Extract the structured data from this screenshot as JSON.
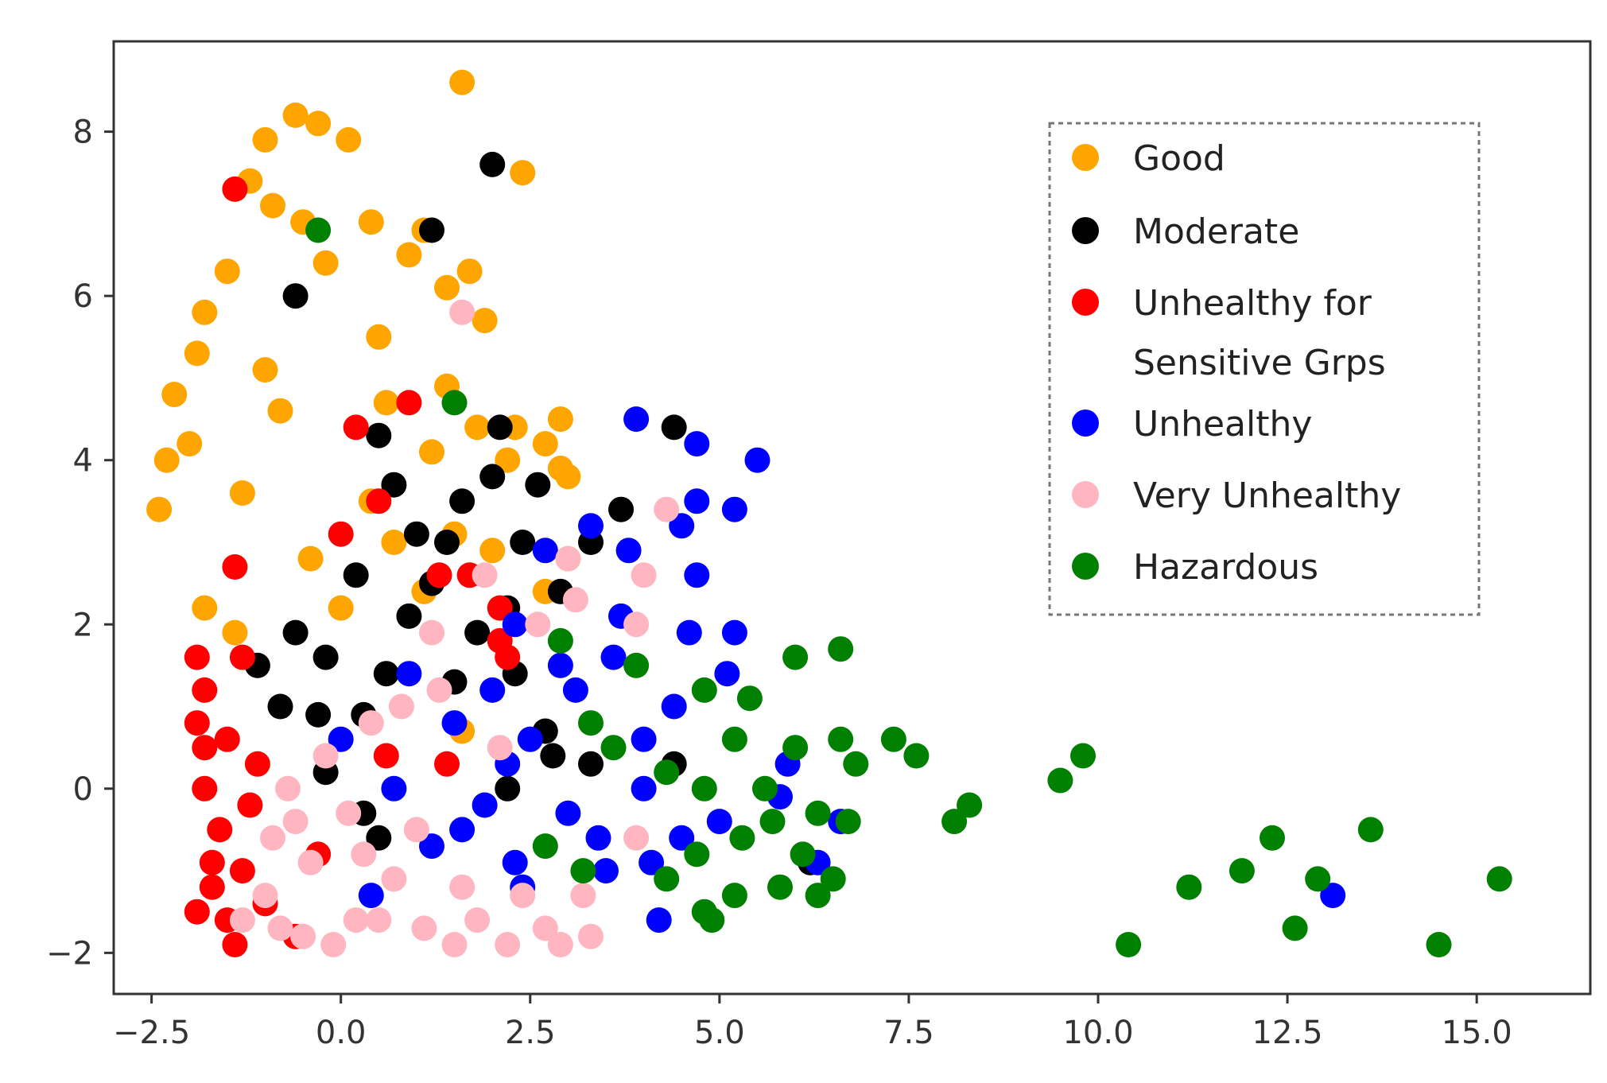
{
  "chart_data": {
    "type": "scatter",
    "title": "",
    "xlabel": "",
    "ylabel": "",
    "xlim": [
      -3.0,
      16.5
    ],
    "ylim": [
      -2.5,
      9.1
    ],
    "grid": false,
    "legend_position": "top-right",
    "x_ticks": [
      {
        "value": -2.5,
        "label": "−2.5"
      },
      {
        "value": 0.0,
        "label": "0.0"
      },
      {
        "value": 2.5,
        "label": "2.5"
      },
      {
        "value": 5.0,
        "label": "5.0"
      },
      {
        "value": 7.5,
        "label": "7.5"
      },
      {
        "value": 10.0,
        "label": "10.0"
      },
      {
        "value": 12.5,
        "label": "12.5"
      },
      {
        "value": 15.0,
        "label": "15.0"
      }
    ],
    "y_ticks": [
      {
        "value": -2,
        "label": "−2"
      },
      {
        "value": 0,
        "label": "0"
      },
      {
        "value": 2,
        "label": "2"
      },
      {
        "value": 4,
        "label": "4"
      },
      {
        "value": 6,
        "label": "6"
      },
      {
        "value": 8,
        "label": "8"
      }
    ],
    "series": [
      {
        "name": "Good",
        "legend_lines": [
          "Good"
        ],
        "color": "#ffa500",
        "points": [
          [
            1.6,
            8.6
          ],
          [
            2.4,
            7.5
          ],
          [
            -0.6,
            8.2
          ],
          [
            -0.3,
            8.1
          ],
          [
            0.1,
            7.9
          ],
          [
            -1.0,
            7.9
          ],
          [
            -1.2,
            7.4
          ],
          [
            -0.9,
            7.1
          ],
          [
            1.1,
            6.8
          ],
          [
            1.7,
            6.3
          ],
          [
            0.9,
            6.5
          ],
          [
            1.4,
            6.1
          ],
          [
            1.9,
            5.7
          ],
          [
            -0.5,
            6.9
          ],
          [
            0.4,
            6.9
          ],
          [
            2.9,
            4.5
          ],
          [
            3.0,
            3.8
          ],
          [
            2.7,
            4.2
          ],
          [
            2.2,
            4.0
          ],
          [
            1.8,
            4.4
          ],
          [
            -2.2,
            4.8
          ],
          [
            -1.9,
            5.3
          ],
          [
            -2.4,
            3.4
          ],
          [
            -1.8,
            2.2
          ],
          [
            -1.4,
            1.9
          ],
          [
            -1.5,
            6.3
          ],
          [
            -0.2,
            6.4
          ],
          [
            0.5,
            5.5
          ],
          [
            1.4,
            4.9
          ],
          [
            1.2,
            4.1
          ],
          [
            0.4,
            3.5
          ],
          [
            0.7,
            3.0
          ],
          [
            -0.8,
            4.6
          ],
          [
            -1.3,
            3.6
          ],
          [
            -0.4,
            2.8
          ],
          [
            0.0,
            2.2
          ],
          [
            1.5,
            3.1
          ],
          [
            2.0,
            2.9
          ],
          [
            3.0,
            2.8
          ],
          [
            1.6,
            0.7
          ],
          [
            2.7,
            2.4
          ],
          [
            -2.0,
            4.2
          ],
          [
            -2.3,
            4.0
          ],
          [
            -1.8,
            5.8
          ],
          [
            -1.0,
            5.1
          ],
          [
            0.6,
            4.7
          ],
          [
            2.3,
            4.4
          ],
          [
            2.9,
            3.9
          ],
          [
            1.1,
            2.4
          ]
        ]
      },
      {
        "name": "Moderate",
        "legend_lines": [
          "Moderate"
        ],
        "color": "#000000",
        "points": [
          [
            2.0,
            7.6
          ],
          [
            1.2,
            6.8
          ],
          [
            -0.6,
            6.0
          ],
          [
            4.4,
            4.4
          ],
          [
            3.7,
            3.4
          ],
          [
            2.1,
            4.4
          ],
          [
            0.5,
            4.3
          ],
          [
            0.7,
            3.7
          ],
          [
            2.0,
            3.8
          ],
          [
            2.6,
            3.7
          ],
          [
            1.6,
            3.5
          ],
          [
            1.0,
            3.1
          ],
          [
            2.4,
            3.0
          ],
          [
            3.3,
            3.0
          ],
          [
            0.2,
            2.6
          ],
          [
            1.2,
            2.5
          ],
          [
            2.2,
            2.2
          ],
          [
            -0.6,
            1.9
          ],
          [
            -0.2,
            1.6
          ],
          [
            0.6,
            1.4
          ],
          [
            1.5,
            1.3
          ],
          [
            2.3,
            1.4
          ],
          [
            -1.1,
            1.5
          ],
          [
            -0.8,
            1.0
          ],
          [
            -0.3,
            0.9
          ],
          [
            0.3,
            0.9
          ],
          [
            2.7,
            0.7
          ],
          [
            2.8,
            0.4
          ],
          [
            3.3,
            0.3
          ],
          [
            -0.2,
            0.2
          ],
          [
            0.3,
            -0.3
          ],
          [
            0.5,
            -0.6
          ],
          [
            2.2,
            0.0
          ],
          [
            6.2,
            -0.9
          ],
          [
            4.4,
            0.3
          ],
          [
            1.8,
            1.9
          ],
          [
            0.9,
            2.1
          ],
          [
            2.9,
            2.4
          ],
          [
            1.4,
            3.0
          ]
        ]
      },
      {
        "name": "Unhealthy for Sensitive Grps",
        "legend_lines": [
          "Unhealthy for",
          "Sensitive Grps"
        ],
        "color": "#ff0000",
        "points": [
          [
            -1.4,
            7.3
          ],
          [
            0.9,
            4.7
          ],
          [
            0.2,
            4.4
          ],
          [
            0.5,
            3.5
          ],
          [
            0.0,
            3.1
          ],
          [
            -1.4,
            2.7
          ],
          [
            1.3,
            2.6
          ],
          [
            1.7,
            2.6
          ],
          [
            2.1,
            1.8
          ],
          [
            2.1,
            2.2
          ],
          [
            -1.8,
            1.2
          ],
          [
            -1.5,
            0.6
          ],
          [
            -1.8,
            0.0
          ],
          [
            -1.6,
            -0.5
          ],
          [
            -1.3,
            -1.0
          ],
          [
            -1.7,
            -1.2
          ],
          [
            -1.9,
            0.8
          ],
          [
            -1.2,
            -0.2
          ],
          [
            -1.0,
            -1.4
          ],
          [
            -1.7,
            -0.9
          ],
          [
            -1.9,
            -1.5
          ],
          [
            -1.3,
            1.6
          ],
          [
            -1.8,
            0.5
          ],
          [
            -1.5,
            -1.6
          ],
          [
            0.6,
            0.4
          ],
          [
            1.4,
            0.3
          ],
          [
            -0.6,
            -1.8
          ],
          [
            -0.3,
            -0.8
          ],
          [
            2.2,
            1.6
          ],
          [
            -1.1,
            0.3
          ],
          [
            -1.9,
            1.6
          ],
          [
            -1.4,
            -1.9
          ]
        ]
      },
      {
        "name": "Unhealthy",
        "legend_lines": [
          "Unhealthy"
        ],
        "color": "#0000ff",
        "points": [
          [
            3.9,
            4.5
          ],
          [
            5.5,
            4.0
          ],
          [
            4.7,
            4.2
          ],
          [
            4.7,
            3.5
          ],
          [
            5.2,
            3.4
          ],
          [
            4.5,
            3.2
          ],
          [
            4.7,
            2.6
          ],
          [
            4.6,
            1.9
          ],
          [
            5.2,
            1.9
          ],
          [
            5.1,
            1.4
          ],
          [
            4.4,
            1.0
          ],
          [
            5.9,
            0.3
          ],
          [
            6.6,
            -0.4
          ],
          [
            3.3,
            3.2
          ],
          [
            3.8,
            2.9
          ],
          [
            2.7,
            2.9
          ],
          [
            2.3,
            2.0
          ],
          [
            3.6,
            1.6
          ],
          [
            3.1,
            1.2
          ],
          [
            2.2,
            0.3
          ],
          [
            4.0,
            0.0
          ],
          [
            4.5,
            -0.6
          ],
          [
            5.8,
            -0.1
          ],
          [
            4.2,
            -1.6
          ],
          [
            2.4,
            -1.2
          ],
          [
            3.5,
            -1.0
          ],
          [
            0.4,
            -1.3
          ],
          [
            1.2,
            -0.7
          ],
          [
            1.9,
            -0.2
          ],
          [
            2.3,
            -0.9
          ],
          [
            3.4,
            -0.6
          ],
          [
            13.1,
            -1.3
          ],
          [
            0.9,
            1.4
          ],
          [
            0.0,
            0.6
          ],
          [
            0.7,
            0.0
          ],
          [
            1.5,
            0.8
          ],
          [
            2.0,
            1.2
          ],
          [
            4.1,
            -0.9
          ],
          [
            5.0,
            -0.4
          ],
          [
            6.3,
            -0.9
          ],
          [
            3.7,
            2.1
          ],
          [
            2.9,
            1.5
          ],
          [
            1.6,
            -0.5
          ],
          [
            3.0,
            -0.3
          ],
          [
            2.5,
            0.6
          ],
          [
            4.0,
            0.6
          ]
        ]
      },
      {
        "name": "Very Unhealthy",
        "legend_lines": [
          "Very Unhealthy"
        ],
        "color": "#ffb6c1",
        "points": [
          [
            1.6,
            5.8
          ],
          [
            4.3,
            3.4
          ],
          [
            3.0,
            2.8
          ],
          [
            4.0,
            2.6
          ],
          [
            3.9,
            2.0
          ],
          [
            2.6,
            2.0
          ],
          [
            3.1,
            2.3
          ],
          [
            1.9,
            2.6
          ],
          [
            1.2,
            1.9
          ],
          [
            0.8,
            1.0
          ],
          [
            0.4,
            0.8
          ],
          [
            -0.2,
            0.4
          ],
          [
            -0.7,
            0.0
          ],
          [
            -0.9,
            -0.6
          ],
          [
            -0.4,
            -0.9
          ],
          [
            0.3,
            -0.8
          ],
          [
            0.7,
            -1.1
          ],
          [
            0.2,
            -1.6
          ],
          [
            -0.5,
            -1.8
          ],
          [
            -1.0,
            -1.3
          ],
          [
            -1.3,
            -1.6
          ],
          [
            1.1,
            -1.7
          ],
          [
            1.8,
            -1.6
          ],
          [
            2.7,
            -1.7
          ],
          [
            3.3,
            -1.8
          ],
          [
            3.2,
            -1.3
          ],
          [
            2.4,
            -1.3
          ],
          [
            1.6,
            -1.2
          ],
          [
            1.0,
            -0.5
          ],
          [
            2.1,
            0.5
          ],
          [
            3.9,
            -0.6
          ],
          [
            -0.8,
            -1.7
          ],
          [
            -0.1,
            -1.9
          ],
          [
            0.5,
            -1.6
          ],
          [
            -0.6,
            -0.4
          ],
          [
            0.1,
            -0.3
          ],
          [
            1.3,
            1.2
          ],
          [
            2.2,
            -1.9
          ],
          [
            1.5,
            -1.9
          ],
          [
            2.9,
            -1.9
          ]
        ]
      },
      {
        "name": "Hazardous",
        "legend_lines": [
          "Hazardous"
        ],
        "color": "#008000",
        "points": [
          [
            6.0,
            1.6
          ],
          [
            6.6,
            1.7
          ],
          [
            5.4,
            1.1
          ],
          [
            4.8,
            1.2
          ],
          [
            5.2,
            0.6
          ],
          [
            6.0,
            0.5
          ],
          [
            6.6,
            0.6
          ],
          [
            7.3,
            0.6
          ],
          [
            7.6,
            0.4
          ],
          [
            6.8,
            0.3
          ],
          [
            6.7,
            -0.4
          ],
          [
            6.3,
            -0.3
          ],
          [
            5.7,
            -0.4
          ],
          [
            5.3,
            -0.6
          ],
          [
            6.1,
            -0.8
          ],
          [
            6.5,
            -1.1
          ],
          [
            5.8,
            -1.2
          ],
          [
            5.2,
            -1.3
          ],
          [
            4.8,
            -1.5
          ],
          [
            6.3,
            -1.3
          ],
          [
            3.9,
            1.5
          ],
          [
            3.6,
            0.5
          ],
          [
            4.3,
            0.2
          ],
          [
            4.8,
            0.0
          ],
          [
            5.6,
            0.0
          ],
          [
            4.7,
            -0.8
          ],
          [
            4.3,
            -1.1
          ],
          [
            3.2,
            -1.0
          ],
          [
            2.7,
            -0.7
          ],
          [
            3.3,
            0.8
          ],
          [
            9.5,
            0.1
          ],
          [
            9.8,
            0.4
          ],
          [
            8.3,
            -0.2
          ],
          [
            8.1,
            -0.4
          ],
          [
            10.4,
            -1.9
          ],
          [
            11.2,
            -1.2
          ],
          [
            11.9,
            -1.0
          ],
          [
            12.3,
            -0.6
          ],
          [
            12.9,
            -1.1
          ],
          [
            13.6,
            -0.5
          ],
          [
            12.6,
            -1.7
          ],
          [
            15.3,
            -1.1
          ],
          [
            14.5,
            -1.9
          ],
          [
            1.5,
            4.7
          ],
          [
            -0.3,
            6.8
          ],
          [
            2.9,
            1.8
          ],
          [
            4.9,
            -1.6
          ]
        ]
      }
    ]
  }
}
